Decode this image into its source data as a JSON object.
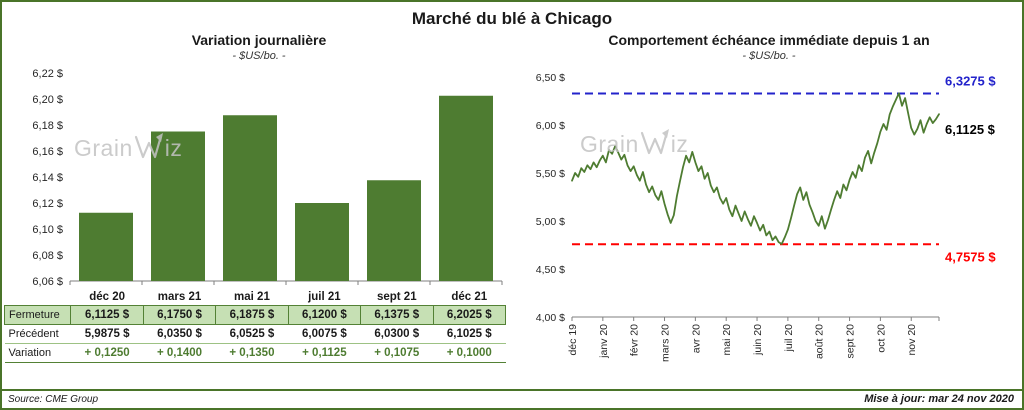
{
  "page": {
    "title": "Marché du blé à Chicago",
    "footer": {
      "source": "Source: CME Group",
      "updated": "Mise à jour: mar 24 nov 2020"
    },
    "watermark": {
      "part1": "Grain",
      "part2": "iz"
    }
  },
  "colors": {
    "green": "#4e7c31",
    "table_light_green": "#c6e0b4",
    "table_border_green": "#538135",
    "frame_green": "#4a7429",
    "blue": "#2323cb",
    "red": "#ff0000",
    "watermark_gray": "#c3c3c3"
  },
  "chart_data": [
    {
      "type": "bar",
      "title": "Variation  journalière",
      "subtitle": "- $US/bo. -",
      "categories": [
        "déc 20",
        "mars 21",
        "mai 21",
        "juil 21",
        "sept 21",
        "déc 21"
      ],
      "values": [
        6.1125,
        6.175,
        6.1875,
        6.12,
        6.1375,
        6.2025
      ],
      "ylim": [
        6.06,
        6.22
      ],
      "ytick_values": [
        6.06,
        6.08,
        6.1,
        6.12,
        6.14,
        6.16,
        6.18,
        6.2,
        6.22
      ],
      "ytick_labels": [
        "6,06 $",
        "6,08 $",
        "6,10 $",
        "6,12 $",
        "6,14 $",
        "6,16 $",
        "6,18 $",
        "6,20 $",
        "6,22 $"
      ],
      "bar_color": "#4e7c31",
      "grid": false,
      "legend": false
    },
    {
      "type": "line",
      "title": "Comportement  échéance immédiate depuis 1 an",
      "subtitle": "- $US/bo. -",
      "x_labels": [
        "déc 19",
        "janv 20",
        "févr 20",
        "mars 20",
        "avr 20",
        "mai 20",
        "juin 20",
        "juil 20",
        "août 20",
        "sept 20",
        "oct 20",
        "nov 20"
      ],
      "points_per_month": 10,
      "values": [
        5.42,
        5.5,
        5.46,
        5.55,
        5.51,
        5.58,
        5.54,
        5.61,
        5.56,
        5.63,
        5.68,
        5.61,
        5.74,
        5.7,
        5.78,
        5.71,
        5.64,
        5.69,
        5.58,
        5.52,
        5.57,
        5.48,
        5.42,
        5.51,
        5.38,
        5.3,
        5.36,
        5.27,
        5.22,
        5.31,
        5.18,
        5.07,
        4.98,
        5.06,
        5.26,
        5.41,
        5.56,
        5.68,
        5.61,
        5.72,
        5.61,
        5.52,
        5.57,
        5.44,
        5.5,
        5.37,
        5.3,
        5.35,
        5.24,
        5.18,
        5.24,
        5.12,
        5.05,
        5.16,
        5.08,
        5.0,
        5.1,
        5.02,
        4.95,
        5.05,
        4.98,
        4.9,
        4.96,
        4.85,
        4.89,
        4.8,
        4.84,
        4.78,
        4.76,
        4.83,
        4.91,
        5.03,
        5.16,
        5.28,
        5.35,
        5.22,
        5.3,
        5.17,
        5.09,
        5.0,
        4.95,
        5.05,
        4.92,
        5.01,
        5.12,
        5.22,
        5.31,
        5.24,
        5.38,
        5.32,
        5.43,
        5.51,
        5.45,
        5.58,
        5.52,
        5.66,
        5.73,
        5.6,
        5.71,
        5.81,
        5.93,
        6.01,
        5.95,
        6.11,
        6.19,
        6.26,
        6.33,
        6.2,
        6.28,
        6.12,
        5.97,
        5.9,
        5.96,
        6.05,
        5.92,
        6.01,
        6.08,
        6.02,
        6.06,
        6.1125
      ],
      "ylim": [
        4.0,
        6.5
      ],
      "ytick_values": [
        4.0,
        4.5,
        5.0,
        5.5,
        6.0,
        6.5
      ],
      "ytick_labels": [
        "4,00 $",
        "4,50 $",
        "5,00 $",
        "5,50 $",
        "6,00 $",
        "6,50 $"
      ],
      "line_color": "#4e7c31",
      "grid": false,
      "legend": false,
      "max_line": {
        "value": 6.3275,
        "label": "6,3275 $",
        "color": "#2323cb"
      },
      "min_line": {
        "value": 4.7575,
        "label": "4,7575 $",
        "color": "#ff0000"
      },
      "last_point": {
        "value": 6.1125,
        "label": "6,1125 $",
        "color": "#000000"
      }
    }
  ],
  "table": {
    "rows": [
      {
        "label": "Fermeture",
        "values": [
          "6,1125  $",
          "6,1750  $",
          "6,1875  $",
          "6,1200  $",
          "6,1375  $",
          "6,2025  $"
        ]
      },
      {
        "label": "Précédent",
        "values": [
          "5,9875  $",
          "6,0350  $",
          "6,0525  $",
          "6,0075  $",
          "6,0300  $",
          "6,1025  $"
        ]
      },
      {
        "label": "Variation",
        "values": [
          "+ 0,1250",
          "+ 0,1400",
          "+ 0,1350",
          "+ 0,1125",
          "+ 0,1075",
          "+ 0,1000"
        ]
      }
    ]
  }
}
